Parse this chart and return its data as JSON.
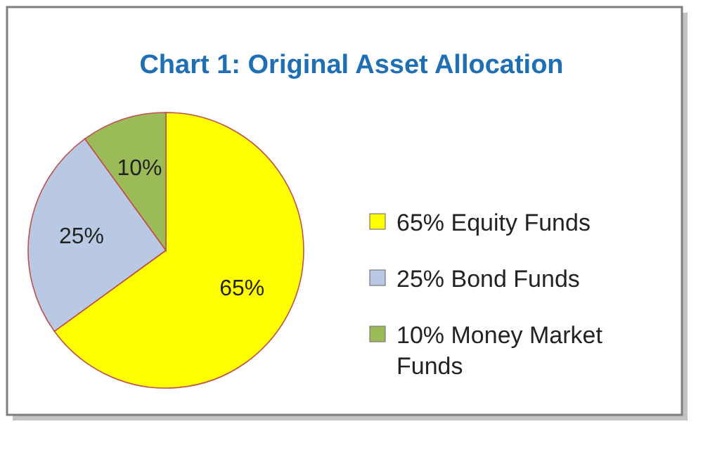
{
  "chart_data": {
    "type": "pie",
    "title": "Chart 1: Original Asset Allocation",
    "categories": [
      "65% Equity Funds",
      "25% Bond Funds",
      "10% Money Market Funds"
    ],
    "values": [
      65,
      25,
      10
    ],
    "colors": [
      "#ffff00",
      "#b9c9e3",
      "#9bbb59"
    ],
    "data_labels": true,
    "value_labels": [
      "65%",
      "25%",
      "10%"
    ],
    "legend": "right"
  }
}
